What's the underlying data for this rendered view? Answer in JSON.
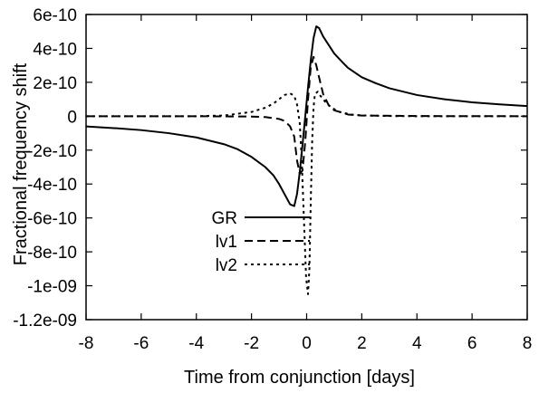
{
  "chart_data": {
    "type": "line",
    "title": "",
    "xlabel": "Time from conjunction [days]",
    "ylabel": "Fractional frequency shift",
    "xlim": [
      -8,
      8
    ],
    "ylim": [
      -1.2e-09,
      6e-10
    ],
    "x_ticks": [
      -8,
      -6,
      -4,
      -2,
      0,
      2,
      4,
      6,
      8
    ],
    "x_tick_labels": [
      "-8",
      "-6",
      "-4",
      "-2",
      "0",
      "2",
      "4",
      "6",
      "8"
    ],
    "y_ticks": [
      6e-10,
      4e-10,
      2e-10,
      0,
      -2e-10,
      -4e-10,
      -6e-10,
      -8e-10,
      -1e-09,
      -1.2e-09
    ],
    "y_tick_labels": [
      "6e-10",
      "4e-10",
      "2e-10",
      "0",
      "-2e-10",
      "-4e-10",
      "-6e-10",
      "-8e-10",
      "-1e-09",
      "-1.2e-09"
    ],
    "grid": false,
    "legend_position": "bottom-left",
    "series": [
      {
        "name": "GR",
        "dash": "solid",
        "color": "#000000",
        "x": [
          -8,
          -7,
          -6,
          -5,
          -4,
          -3,
          -2.5,
          -2,
          -1.5,
          -1.2,
          -1,
          -0.8,
          -0.6,
          -0.45,
          -0.35,
          -0.25,
          -0.15,
          -0.05,
          0.05,
          0.15,
          0.25,
          0.35,
          0.45,
          0.6,
          0.8,
          1,
          1.2,
          1.5,
          2,
          2.5,
          3,
          4,
          5,
          6,
          7,
          8
        ],
        "y": [
          -6e-11,
          -7e-11,
          -8.2e-11,
          -1e-10,
          -1.25e-10,
          -1.65e-10,
          -1.95e-10,
          -2.4e-10,
          -3e-10,
          -3.5e-10,
          -4e-10,
          -4.6e-10,
          -5.2e-10,
          -5.3e-10,
          -4.6e-10,
          -3.3e-10,
          -1.7e-10,
          0,
          1.7e-10,
          3.3e-10,
          4.6e-10,
          5.3e-10,
          5.2e-10,
          4.7e-10,
          4.2e-10,
          3.7e-10,
          3.35e-10,
          2.85e-10,
          2.3e-10,
          1.95e-10,
          1.65e-10,
          1.25e-10,
          1e-10,
          8.2e-11,
          7e-11,
          6e-11
        ]
      },
      {
        "name": "lv1",
        "dash": "long-dash",
        "color": "#000000",
        "x": [
          -8,
          -4,
          -2,
          -1.5,
          -1,
          -0.8,
          -0.6,
          -0.45,
          -0.35,
          -0.25,
          -0.15,
          -0.05,
          0.05,
          0.15,
          0.25,
          0.35,
          0.45,
          0.6,
          0.8,
          1,
          1.5,
          2,
          4,
          8
        ],
        "y": [
          0,
          0,
          -2e-12,
          -5e-12,
          -1.6e-11,
          -2.8e-11,
          -6e-11,
          -1.2e-10,
          -2.6e-10,
          -3.4e-10,
          -3.2e-10,
          -1.5e-10,
          1e-10,
          2.9e-10,
          3.5e-10,
          3e-10,
          2.3e-10,
          1.3e-10,
          6.5e-11,
          3.5e-11,
          1e-11,
          4e-12,
          1e-12,
          0
        ]
      },
      {
        "name": "lv2",
        "dash": "dotted",
        "color": "#000000",
        "x": [
          -8,
          -4,
          -3,
          -2,
          -1.5,
          -1.2,
          -1,
          -0.8,
          -0.6,
          -0.45,
          -0.35,
          -0.25,
          -0.18,
          -0.1,
          -0.02,
          0.05,
          0.1,
          0.15,
          0.2,
          0.25,
          0.3,
          0.4,
          0.5,
          0.7,
          0.9,
          1.2,
          1.6,
          2,
          3,
          4,
          8
        ],
        "y": [
          0,
          0,
          4e-12,
          2.5e-11,
          5e-11,
          7.5e-11,
          1e-10,
          1.25e-10,
          1.35e-10,
          1.2e-10,
          7e-11,
          -4e-11,
          -2.5e-10,
          -6e-10,
          -9.5e-10,
          -1.05e-09,
          -9e-10,
          -5e-10,
          -1.5e-10,
          5e-11,
          1.3e-10,
          1.45e-10,
          1.2e-10,
          8e-11,
          5e-11,
          2.5e-11,
          1e-11,
          5e-12,
          1e-12,
          0,
          0
        ]
      }
    ]
  }
}
